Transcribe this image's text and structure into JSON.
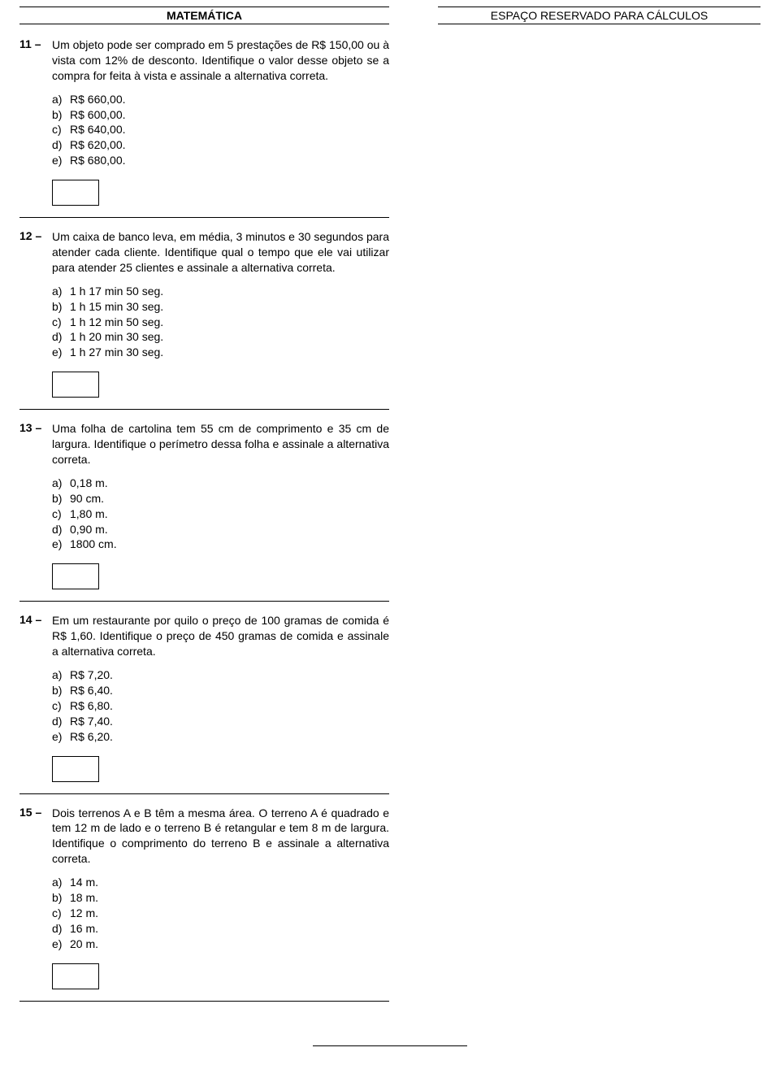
{
  "header_left": "MATEMÁTICA",
  "header_right": "ESPAÇO RESERVADO PARA CÁLCULOS",
  "questions": [
    {
      "num": "11 –",
      "text": "Um objeto pode ser comprado em 5 prestações de R$ 150,00 ou à vista com 12% de desconto. Identifique o valor desse objeto se a compra for feita à vista e assinale a alternativa correta.",
      "options": [
        {
          "l": "a)",
          "t": "R$ 660,00."
        },
        {
          "l": "b)",
          "t": "R$ 600,00."
        },
        {
          "l": "c)",
          "t": "R$ 640,00."
        },
        {
          "l": "d)",
          "t": "R$ 620,00."
        },
        {
          "l": "e)",
          "t": "R$ 680,00."
        }
      ]
    },
    {
      "num": "12 –",
      "text": "Um caixa de banco leva, em média, 3 minutos e 30 segundos para atender cada cliente. Identifique qual o tempo que ele vai utilizar para atender 25 clientes e assinale a alternativa correta.",
      "options": [
        {
          "l": "a)",
          "t": "1 h 17 min 50 seg."
        },
        {
          "l": "b)",
          "t": "1 h 15 min 30 seg."
        },
        {
          "l": "c)",
          "t": "1 h 12 min 50 seg."
        },
        {
          "l": "d)",
          "t": "1 h 20 min 30 seg."
        },
        {
          "l": "e)",
          "t": "1 h 27 min 30 seg."
        }
      ]
    },
    {
      "num": "13 –",
      "text": "Uma folha de cartolina tem 55 cm de comprimento e 35 cm de largura. Identifique o perímetro dessa folha e assinale a alternativa correta.",
      "options": [
        {
          "l": "a)",
          "t": "0,18 m."
        },
        {
          "l": "b)",
          "t": "90 cm."
        },
        {
          "l": "c)",
          "t": "1,80 m."
        },
        {
          "l": "d)",
          "t": "0,90 m."
        },
        {
          "l": "e)",
          "t": "1800 cm."
        }
      ]
    },
    {
      "num": "14 –",
      "text": "Em um restaurante por quilo o preço de 100 gramas de comida é R$ 1,60. Identifique o preço de 450 gramas de comida e assinale a alternativa correta.",
      "options": [
        {
          "l": "a)",
          "t": "R$ 7,20."
        },
        {
          "l": "b)",
          "t": "R$ 6,40."
        },
        {
          "l": "c)",
          "t": "R$ 6,80."
        },
        {
          "l": "d)",
          "t": "R$ 7,40."
        },
        {
          "l": "e)",
          "t": "R$ 6,20."
        }
      ]
    },
    {
      "num": "15 –",
      "text": "Dois terrenos A e B têm a mesma área. O terreno A é quadrado e tem 12 m de lado e o terreno B é retangular e tem 8 m de largura. Identifique o comprimento do terreno B e assinale a alternativa correta.",
      "options": [
        {
          "l": "a)",
          "t": "14 m."
        },
        {
          "l": "b)",
          "t": "18 m."
        },
        {
          "l": "c)",
          "t": "12 m."
        },
        {
          "l": "d)",
          "t": "16 m."
        },
        {
          "l": "e)",
          "t": "20 m."
        }
      ]
    }
  ]
}
